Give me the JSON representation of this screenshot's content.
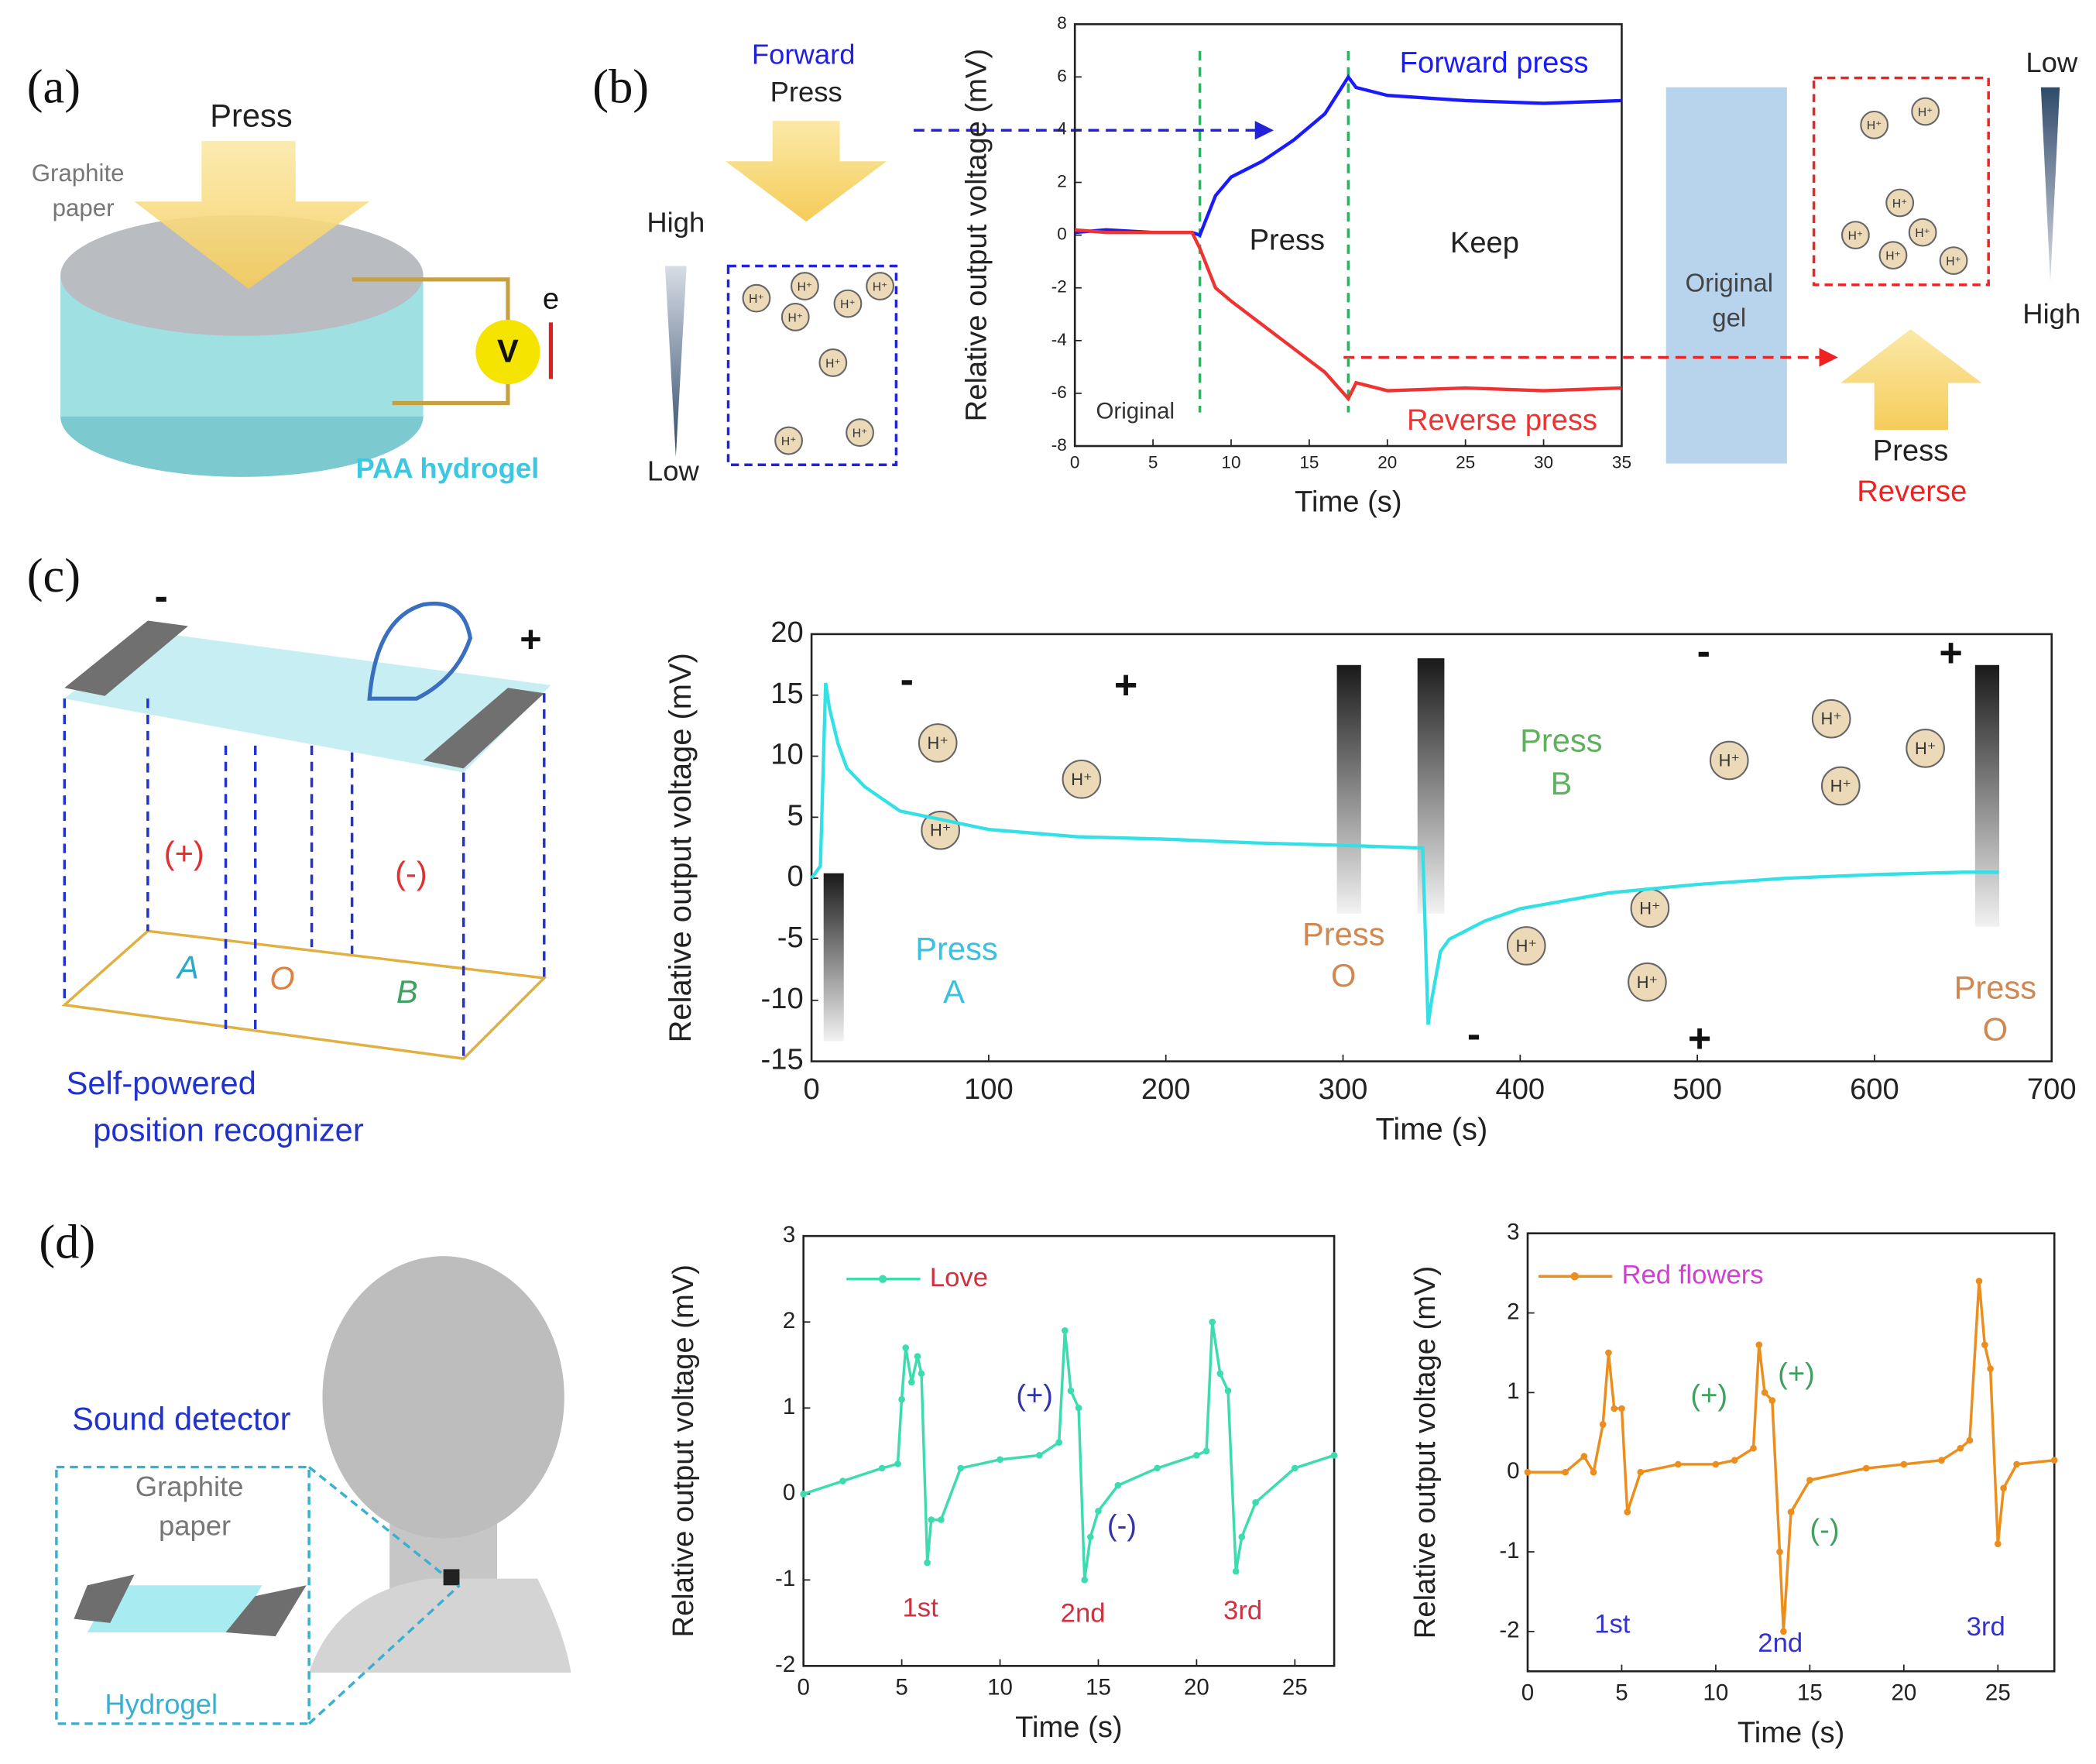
{
  "chart_data": [
    {
      "type": "line",
      "xlabel": "Time (s)",
      "ylabel": "Relative output voltage (mV)",
      "x": [
        0,
        2,
        5,
        7.5,
        8,
        9,
        10,
        12,
        14,
        16,
        17.5,
        18,
        20,
        25,
        30,
        35
      ],
      "series": [
        {
          "name": "Forward press",
          "color": "#1a1aff",
          "values": [
            0.1,
            0.2,
            0.1,
            0.1,
            0,
            1.5,
            2.2,
            2.8,
            3.6,
            4.6,
            6,
            5.6,
            5.3,
            5.1,
            5.0,
            5.1
          ]
        },
        {
          "name": "Reverse press",
          "color": "#ee3333",
          "values": [
            0.2,
            0.1,
            0.1,
            0.1,
            -0.5,
            -2,
            -2.5,
            -3.4,
            -4.3,
            -5.2,
            -6.2,
            -5.6,
            -5.9,
            -5.8,
            -5.9,
            -5.8
          ]
        }
      ],
      "xlim": [
        0,
        35
      ],
      "xticks": [
        0,
        5,
        10,
        15,
        20,
        25,
        30,
        35
      ],
      "ylim": [
        -8,
        8
      ],
      "yticks": [
        -8,
        -6,
        -4,
        -2,
        0,
        2,
        4,
        6,
        8
      ],
      "vlines": [
        8,
        17.5
      ],
      "annotations": [
        "Press",
        "Keep",
        "Original"
      ]
    },
    {
      "type": "line",
      "xlabel": "Time (s)",
      "ylabel": "Relative output voltage (mV)",
      "x": [
        0,
        5,
        8,
        10,
        15,
        20,
        30,
        50,
        100,
        150,
        200,
        250,
        300,
        340,
        345,
        348,
        350,
        355,
        360,
        380,
        400,
        450,
        500,
        550,
        600,
        650,
        670
      ],
      "values": [
        0,
        1,
        16,
        14,
        11,
        9,
        7.5,
        5.5,
        4,
        3.4,
        3.2,
        2.9,
        2.7,
        2.5,
        2.5,
        -12,
        -10,
        -6,
        -5,
        -3.5,
        -2.5,
        -1.2,
        -0.5,
        0,
        0.3,
        0.5,
        0.5
      ],
      "color": "#33e0e6",
      "xlim": [
        0,
        700
      ],
      "xticks": [
        0,
        100,
        200,
        300,
        400,
        500,
        600,
        700
      ],
      "ylim": [
        -15,
        20
      ],
      "yticks": [
        -15,
        -10,
        -5,
        0,
        5,
        10,
        15,
        20
      ],
      "annotations": [
        "Press",
        "A",
        "Press",
        "O",
        "Press",
        "B",
        "Press",
        "O",
        "-",
        "+",
        "-",
        "+",
        "-",
        "+"
      ]
    },
    {
      "type": "line",
      "xlabel": "Time (s)",
      "ylabel": "Relative output voltage (mV)",
      "x": [
        0,
        2,
        4,
        4.8,
        5,
        5.2,
        5.5,
        5.8,
        6,
        6.3,
        6.5,
        7,
        8,
        10,
        12,
        13,
        13.3,
        13.6,
        14,
        14.3,
        14.6,
        15,
        16,
        18,
        20,
        20.5,
        20.8,
        21.2,
        21.6,
        22,
        22.3,
        23,
        25,
        27
      ],
      "series": [
        {
          "name": "Love",
          "color": "#3ddcb0",
          "values": [
            0,
            0.15,
            0.3,
            0.35,
            1.1,
            1.7,
            1.3,
            1.6,
            1.4,
            -0.8,
            -0.3,
            -0.3,
            0.3,
            0.4,
            0.45,
            0.6,
            1.9,
            1.2,
            1.0,
            -1.0,
            -0.5,
            -0.2,
            0.1,
            0.3,
            0.45,
            0.5,
            2.0,
            1.4,
            1.2,
            -0.9,
            -0.5,
            -0.1,
            0.3,
            0.45
          ]
        }
      ],
      "xlim": [
        0,
        27
      ],
      "xticks": [
        0,
        5,
        10,
        15,
        20,
        25
      ],
      "ylim": [
        -2,
        3
      ],
      "yticks": [
        -2,
        -1,
        0,
        1,
        2,
        3
      ],
      "legend": "upper left",
      "annotations": [
        "(+)",
        "(-)",
        "1st",
        "2nd",
        "3rd"
      ]
    },
    {
      "type": "line",
      "xlabel": "Time (s)",
      "ylabel": "Relative output voltage (mV)",
      "x": [
        0,
        2,
        3,
        3.5,
        4,
        4.3,
        4.6,
        5,
        5.3,
        6,
        8,
        10,
        11,
        12,
        12.3,
        12.6,
        13,
        13.4,
        13.6,
        14,
        15,
        18,
        20,
        22,
        23,
        23.5,
        24,
        24.3,
        24.6,
        25,
        25.3,
        26,
        28
      ],
      "series": [
        {
          "name": "Red flowers",
          "color": "#ec8e1e",
          "values": [
            0,
            0,
            0.2,
            0,
            0.6,
            1.5,
            0.8,
            0.8,
            -0.5,
            0,
            0.1,
            0.1,
            0.15,
            0.3,
            1.6,
            1.0,
            0.9,
            -1.0,
            -2.0,
            -0.5,
            -0.1,
            0.05,
            0.1,
            0.15,
            0.3,
            0.4,
            2.4,
            1.6,
            1.3,
            -0.9,
            -0.2,
            0.1,
            0.15
          ]
        }
      ],
      "xlim": [
        0,
        28
      ],
      "xticks": [
        0,
        5,
        10,
        15,
        20,
        25
      ],
      "ylim": [
        -2.5,
        3
      ],
      "yticks": [
        -2,
        -1,
        0,
        1,
        2,
        3
      ],
      "legend": "upper left",
      "annotations": [
        "(+)",
        "(+)",
        "(-)",
        "1st",
        "2nd",
        "3rd"
      ]
    }
  ],
  "figure": {
    "a": {
      "label": "(a)",
      "press": "Press",
      "graphite": "Graphite",
      "paper": "paper",
      "meter": "V",
      "electron": "e",
      "gel": "PAA hydrogel"
    },
    "b": {
      "label": "(b)",
      "forward": "Forward",
      "press": "Press",
      "high": "High",
      "low": "Low",
      "original": "Original",
      "gel": "gel",
      "reverse": "Reverse"
    },
    "c": {
      "label": "(c)",
      "minus": "-",
      "plus": "+",
      "pos": "(+)",
      "neg": "(-)",
      "a": "A",
      "o": "O",
      "b": "B",
      "caption1": "Self-powered",
      "caption2": "position recognizer"
    },
    "d": {
      "label": "(d)",
      "title": "Sound detector",
      "graphite": "Graphite",
      "paper": "paper",
      "gel": "Hydrogel"
    },
    "ion": "H⁺"
  }
}
